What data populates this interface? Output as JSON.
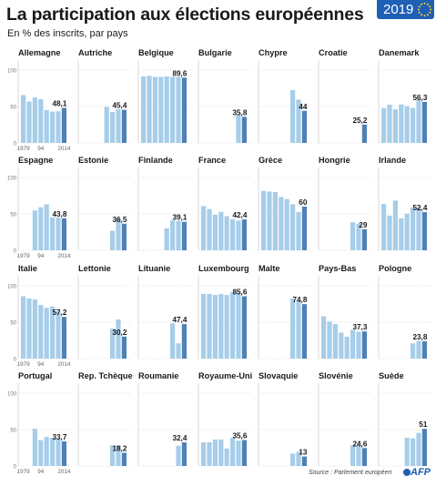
{
  "header": {
    "title": "La participation aux élections européennes",
    "subtitle": "En % des inscrits, par pays",
    "year_badge": "2019"
  },
  "footer": {
    "source": "Source : Parlement européen",
    "logo_text": "AFP"
  },
  "colors": {
    "bar_history": "#a6cde9",
    "bar_latest": "#4e81b5",
    "badge": "#1f5fb4",
    "text": "#1a1a1a"
  },
  "chart_data": {
    "type": "bar",
    "years": [
      1979,
      1984,
      1989,
      1994,
      1999,
      2004,
      2009,
      2014
    ],
    "y_axis_ticks": [
      0,
      50,
      100
    ],
    "x_tick_labels": [
      "1979",
      "94",
      "2014"
    ],
    "ylim": [
      0,
      100
    ],
    "latest_year": 2014,
    "countries": [
      {
        "name": "Allemagne",
        "values": [
          65.7,
          56.8,
          62.3,
          60.0,
          45.2,
          43.0,
          43.3,
          48.1
        ],
        "label": "48,1"
      },
      {
        "name": "Autriche",
        "values": [
          null,
          null,
          null,
          null,
          49.4,
          42.4,
          46.0,
          45.4
        ],
        "label": "45,4"
      },
      {
        "name": "Belgique",
        "values": [
          91.4,
          92.1,
          90.7,
          90.7,
          91.1,
          90.8,
          90.4,
          89.6
        ],
        "label": "89,6"
      },
      {
        "name": "Bulgarie",
        "values": [
          null,
          null,
          null,
          null,
          null,
          null,
          39.0,
          35.8
        ],
        "label": "35,8"
      },
      {
        "name": "Chypre",
        "values": [
          null,
          null,
          null,
          null,
          null,
          72.5,
          59.4,
          44.0
        ],
        "label": "44"
      },
      {
        "name": "Croatie",
        "values": [
          null,
          null,
          null,
          null,
          null,
          null,
          null,
          25.2
        ],
        "label": "25,2"
      },
      {
        "name": "Danemark",
        "values": [
          47.8,
          52.4,
          46.2,
          52.9,
          50.5,
          47.9,
          59.5,
          56.3
        ],
        "label": "56,3"
      },
      {
        "name": "Espagne",
        "values": [
          null,
          null,
          54.7,
          59.1,
          63.1,
          45.1,
          44.9,
          43.8
        ],
        "label": "43,8"
      },
      {
        "name": "Estonie",
        "values": [
          null,
          null,
          null,
          null,
          null,
          26.8,
          43.9,
          36.5
        ],
        "label": "36,5"
      },
      {
        "name": "Finlande",
        "values": [
          null,
          null,
          null,
          null,
          30.1,
          41.1,
          40.3,
          39.1
        ],
        "label": "39,1"
      },
      {
        "name": "France",
        "values": [
          60.7,
          56.7,
          48.8,
          52.7,
          46.8,
          42.8,
          40.6,
          42.4
        ],
        "label": "42,4"
      },
      {
        "name": "Grèce",
        "values": [
          81.5,
          80.6,
          80.0,
          73.2,
          70.3,
          63.2,
          52.6,
          60.0
        ],
        "label": "60"
      },
      {
        "name": "Hongrie",
        "values": [
          null,
          null,
          null,
          null,
          null,
          38.5,
          36.3,
          29.0
        ],
        "label": "29"
      },
      {
        "name": "Irlande",
        "values": [
          63.6,
          47.6,
          68.3,
          44.0,
          50.2,
          58.6,
          58.6,
          52.4
        ],
        "label": "52,4"
      },
      {
        "name": "Italie",
        "values": [
          85.7,
          82.5,
          81.1,
          73.6,
          69.8,
          71.7,
          65.1,
          57.2
        ],
        "label": "57,2"
      },
      {
        "name": "Lettonie",
        "values": [
          null,
          null,
          null,
          null,
          null,
          41.3,
          53.7,
          30.2
        ],
        "label": "30,2"
      },
      {
        "name": "Lituanie",
        "values": [
          null,
          null,
          null,
          null,
          null,
          48.4,
          21.0,
          47.4
        ],
        "label": "47,4"
      },
      {
        "name": "Luxembourg",
        "values": [
          88.9,
          88.8,
          87.4,
          88.6,
          87.3,
          91.4,
          90.8,
          85.6
        ],
        "label": "85,6"
      },
      {
        "name": "Malte",
        "values": [
          null,
          null,
          null,
          null,
          null,
          82.4,
          78.8,
          74.8
        ],
        "label": "74,8"
      },
      {
        "name": "Pays-Bas",
        "values": [
          58.1,
          50.9,
          47.5,
          35.7,
          30.0,
          39.3,
          36.8,
          37.3
        ],
        "label": "37,3"
      },
      {
        "name": "Pologne",
        "values": [
          null,
          null,
          null,
          null,
          null,
          20.9,
          24.5,
          23.8
        ],
        "label": "23,8"
      },
      {
        "name": "Portugal",
        "values": [
          null,
          null,
          51.1,
          35.5,
          39.9,
          38.6,
          36.8,
          33.7
        ],
        "label": "33,7"
      },
      {
        "name": "Rep. Tchèque",
        "values": [
          null,
          null,
          null,
          null,
          null,
          28.3,
          28.2,
          18.2
        ],
        "label": "18,2"
      },
      {
        "name": "Roumanie",
        "values": [
          null,
          null,
          null,
          null,
          null,
          null,
          27.7,
          32.4
        ],
        "label": "32,4"
      },
      {
        "name": "Royaume-Uni",
        "values": [
          32.4,
          32.6,
          36.4,
          36.4,
          24.0,
          38.5,
          34.7,
          35.6
        ],
        "label": "35,6"
      },
      {
        "name": "Slovaquie",
        "values": [
          null,
          null,
          null,
          null,
          null,
          17.0,
          19.6,
          13.0
        ],
        "label": "13"
      },
      {
        "name": "Slovénie",
        "values": [
          null,
          null,
          null,
          null,
          null,
          28.4,
          28.4,
          24.6
        ],
        "label": "24,6"
      },
      {
        "name": "Suède",
        "values": [
          null,
          null,
          null,
          null,
          38.8,
          37.9,
          45.5,
          51.0
        ],
        "label": "51"
      }
    ]
  }
}
